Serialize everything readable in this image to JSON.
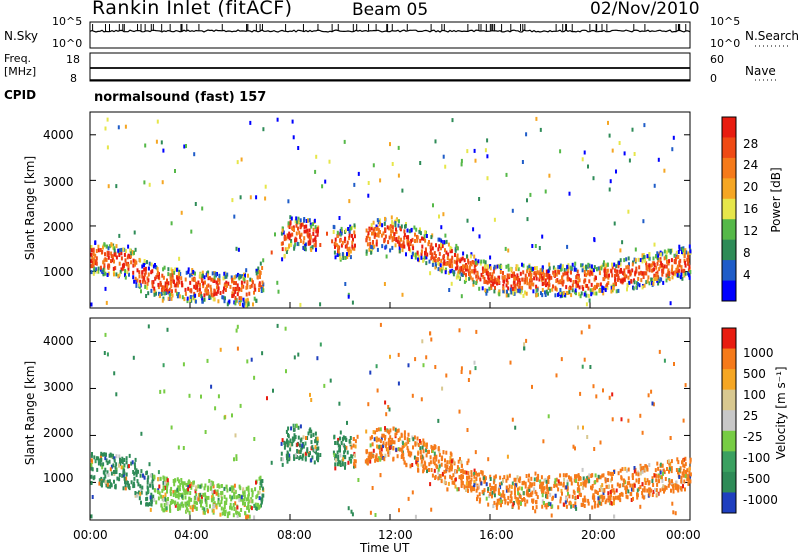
{
  "header": {
    "station": "Rankin Inlet (fitACF)",
    "beam": "Beam 05",
    "date": "02/Nov/2010"
  },
  "top_panels": {
    "nsky_label": "N.Sky",
    "nsky_ticks": [
      "10^5",
      "10^0"
    ],
    "nsearch_label": "N.Search",
    "nsearch_ticks": [
      "10^5",
      "10^0"
    ],
    "freq_label_1": "Freq.",
    "freq_label_2": "[MHz]",
    "freq_ticks": [
      "18",
      "8"
    ],
    "nave_label": "Nave",
    "nave_ticks": [
      "60",
      "0"
    ],
    "cpid_label": "CPID",
    "cpid_value": "normalsound (fast) 157"
  },
  "chart_data": [
    {
      "type": "heatmap",
      "name": "power-panel",
      "ylabel": "Slant Range [km]",
      "yticks": [
        "4000",
        "3000",
        "2000",
        "1000"
      ],
      "ylim": [
        200,
        4500
      ],
      "xlim_hours": [
        0,
        24
      ],
      "colorbar_label": "Power [dB]",
      "colorbar_ticks": [
        "28",
        "24",
        "20",
        "16",
        "12",
        "8",
        "4"
      ],
      "colors": [
        "#0000ff",
        "#1f5cc8",
        "#2e8b57",
        "#55b848",
        "#e6e64a",
        "#f5a623",
        "#f57a1a",
        "#ef4a14",
        "#e81c10"
      ],
      "layer": [
        {
          "t": 0.0,
          "r": 1350
        },
        {
          "t": 1.5,
          "r": 1250
        },
        {
          "t": 2.0,
          "r": 950
        },
        {
          "t": 3.0,
          "r": 780
        },
        {
          "t": 6.0,
          "r": 650
        },
        {
          "t": 6.5,
          "r": 620
        },
        {
          "t": 8.0,
          "r": 1950
        },
        {
          "t": 10.0,
          "r": 1650
        },
        {
          "t": 12.0,
          "r": 1900
        },
        {
          "t": 14.5,
          "r": 1300
        },
        {
          "t": 16.0,
          "r": 850
        },
        {
          "t": 20.0,
          "r": 850
        },
        {
          "t": 24.0,
          "r": 1250
        }
      ]
    },
    {
      "type": "heatmap",
      "name": "velocity-panel",
      "ylabel": "Slant Range [km]",
      "yticks": [
        "4000",
        "3000",
        "2000",
        "1000"
      ],
      "ylim": [
        200,
        4500
      ],
      "xlim_hours": [
        0,
        24
      ],
      "colorbar_label": "Velocity [m s⁻¹]",
      "colorbar_ticks": [
        "1000",
        "500",
        "100",
        "25",
        "-25",
        "-100",
        "-500",
        "-1000"
      ],
      "colors": [
        "#1f3fbf",
        "#2e8b57",
        "#3aa060",
        "#77cc44",
        "#c8c8c8",
        "#d8c890",
        "#f5a623",
        "#f57a1a",
        "#e81c10"
      ],
      "segments": [
        {
          "t0": 0,
          "t1": 2.5,
          "color": "#2e8b57"
        },
        {
          "t0": 2.5,
          "t1": 6.8,
          "color": "#77cc44"
        },
        {
          "t0": 7.5,
          "t1": 10.5,
          "color": "#2e8b57"
        },
        {
          "t0": 10.5,
          "t1": 14.5,
          "color": "#f57a1a"
        },
        {
          "t0": 14.5,
          "t1": 24,
          "color": "#f57a1a"
        }
      ]
    }
  ],
  "xaxis": {
    "ticks": [
      "00:00",
      "04:00",
      "08:00",
      "12:00",
      "16:00",
      "20:00",
      "00:00"
    ],
    "label": "Time UT"
  }
}
